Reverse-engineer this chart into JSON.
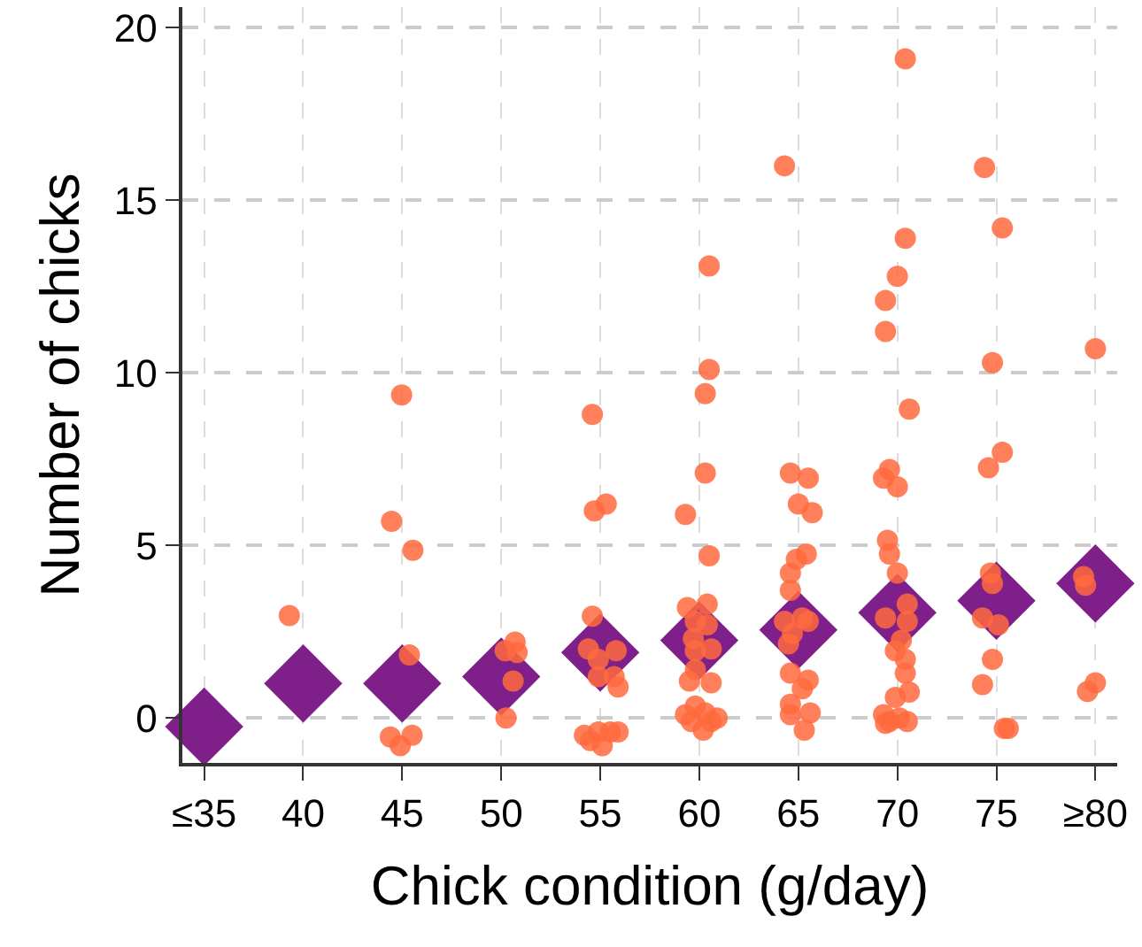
{
  "chart_data": {
    "type": "scatter",
    "xlabel": "Chick condition (g/day)",
    "ylabel": "Number of chicks",
    "xlim": [
      33.9,
      81.1
    ],
    "ylim": [
      -1.3,
      20.6
    ],
    "xticks": [
      {
        "value": 35,
        "label": "≤35"
      },
      40,
      45,
      50,
      55,
      60,
      65,
      70,
      {
        "value": 80,
        "label": "≥80"
      },
      75
    ],
    "yticks": [
      0,
      5,
      10,
      15,
      20
    ],
    "grid": true,
    "series": [
      {
        "marker": "circle",
        "color": "#ff6a3d",
        "x": [
          44.97,
          44.46,
          45.54,
          45.36,
          44.4,
          44.9,
          45.5,
          39.3,
          50.24,
          50.6,
          50.2,
          50.7,
          50.8,
          54.6,
          54.7,
          55.3,
          54.6,
          54.4,
          54.9,
          55.8,
          54.9,
          55.7,
          55.9,
          54.2,
          54.5,
          54.9,
          55.1,
          55.5,
          55.9,
          60.5,
          60.5,
          60.3,
          60.3,
          59.3,
          60.5,
          60.4,
          59.4,
          59.8,
          60.4,
          59.7,
          60.6,
          59.8,
          59.8,
          59.5,
          60.6,
          59.3,
          59.8,
          60.3,
          60.9,
          59.6,
          60.2,
          60.6,
          64.3,
          64.6,
          65.5,
          65.0,
          65.7,
          65.4,
          64.9,
          64.6,
          64.6,
          65.2,
          64.3,
          65.5,
          64.7,
          64.5,
          64.6,
          65.5,
          65.2,
          64.6,
          64.6,
          65.6,
          65.3,
          70.4,
          70.4,
          70.0,
          69.4,
          69.4,
          70.6,
          69.6,
          69.3,
          70.0,
          69.5,
          69.6,
          70.0,
          69.4,
          70.5,
          70.5,
          70.2,
          69.9,
          70.4,
          70.4,
          70.6,
          69.9,
          69.3,
          69.6,
          70.1,
          70.5,
          69.4,
          74.4,
          75.3,
          74.8,
          75.3,
          74.6,
          74.7,
          74.8,
          74.3,
          75.1,
          74.8,
          74.3,
          75.4,
          75.6,
          80.0,
          79.4,
          79.5,
          80.0,
          79.6
        ],
        "values": [
          9.36,
          5.7,
          4.86,
          1.83,
          -0.55,
          -0.8,
          -0.5,
          2.97,
          0,
          1.07,
          1.95,
          2.2,
          1.9,
          8.8,
          6.0,
          6.2,
          2.95,
          2.0,
          1.7,
          1.95,
          1.2,
          1.2,
          0.9,
          -0.5,
          -0.65,
          -0.4,
          -0.8,
          -0.4,
          -0.4,
          13.1,
          10.1,
          9.4,
          7.1,
          5.9,
          4.7,
          3.3,
          3.2,
          2.8,
          2.7,
          2.3,
          2.0,
          1.95,
          1.4,
          1.07,
          1.02,
          0.1,
          0.35,
          0.15,
          0,
          -0.1,
          -0.35,
          -0.1,
          16.0,
          7.1,
          6.95,
          6.2,
          5.95,
          4.75,
          4.6,
          4.2,
          3.7,
          2.9,
          2.8,
          2.8,
          2.45,
          2.15,
          1.3,
          1.1,
          0.85,
          0.4,
          0.1,
          0.15,
          -0.35,
          19.1,
          13.9,
          12.8,
          12.1,
          11.2,
          8.95,
          7.2,
          6.95,
          6.7,
          5.15,
          4.75,
          4.2,
          2.9,
          3.3,
          2.8,
          2.25,
          1.95,
          1.7,
          1.3,
          0.75,
          0.6,
          0.1,
          -0.1,
          0,
          -0.1,
          -0.15,
          15.95,
          14.2,
          10.3,
          7.7,
          7.25,
          4.2,
          3.9,
          2.9,
          2.7,
          1.7,
          0.97,
          -0.3,
          -0.3,
          10.7,
          4.1,
          3.85,
          1.02,
          0.77
        ]
      },
      {
        "marker": "diamond",
        "color": "#7f1f8a",
        "x": [
          35,
          40,
          45,
          50,
          55,
          60,
          65,
          70,
          75,
          80
        ],
        "values": [
          -0.25,
          1.0,
          1.0,
          1.2,
          1.9,
          2.25,
          2.55,
          3.05,
          3.4,
          3.9
        ]
      }
    ]
  }
}
